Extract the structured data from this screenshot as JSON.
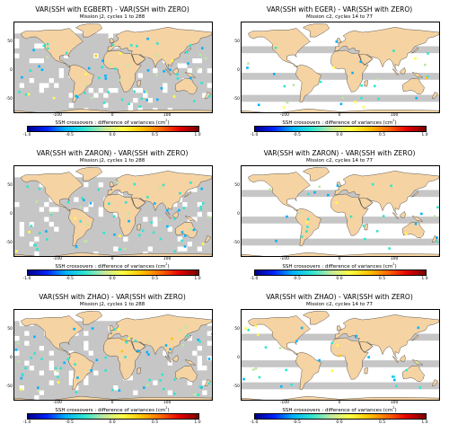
{
  "panels": [
    {
      "id": "egbert-j2",
      "title": "VAR(SSH with EGBERT) - VAR(SSH with ZERO)",
      "subtitle": "Mission j2, cycles 1 to 288",
      "mode": "j2"
    },
    {
      "id": "eger-c2",
      "title": "VAR(SSH with EGER) - VAR(SSH with ZERO)",
      "subtitle": "Mission c2, cycles 14 to 77",
      "mode": "c2"
    },
    {
      "id": "zaron-j2",
      "title": "VAR(SSH with ZARON) - VAR(SSH with ZERO)",
      "subtitle": "Mission j2, cycles 1 to 288",
      "mode": "j2"
    },
    {
      "id": "zaron-c2",
      "title": "VAR(SSH with ZARON) - VAR(SSH with ZERO)",
      "subtitle": "Mission c2, cycles 14 to 77",
      "mode": "c2"
    },
    {
      "id": "zhao-j2",
      "title": "VAR(SSH with ZHAO) - VAR(SSH with ZERO)",
      "subtitle": "Mission j2, cycles 1 to 288",
      "mode": "j2"
    },
    {
      "id": "zhao-c2",
      "title": "VAR(SSH with ZHAO) - VAR(SSH with ZERO)",
      "subtitle": "Mission c2, cycles 14 to 77",
      "mode": "c2"
    }
  ],
  "colorbar": {
    "label": "SSH crossovers : difference of variances (cm",
    "unit_sup": "2",
    "label_close": ")",
    "ticks": [
      "-1.0",
      "-0.5",
      "0.0",
      "0.5",
      "1.0"
    ]
  },
  "axes": {
    "lat_ticks": [
      "50",
      "0",
      "-50"
    ],
    "lon_ticks": [
      "-100",
      "0",
      "100"
    ]
  },
  "colors": {
    "land": "#f5d3a3",
    "coast": "#333333",
    "no_data": "#c6c6c6",
    "scale": [
      "#00008b",
      "#0022ff",
      "#00b3ff",
      "#2ee6d0",
      "#bfe8a0",
      "#ffff44",
      "#ffc400",
      "#ff6a00",
      "#e60000",
      "#7a0000"
    ]
  }
}
